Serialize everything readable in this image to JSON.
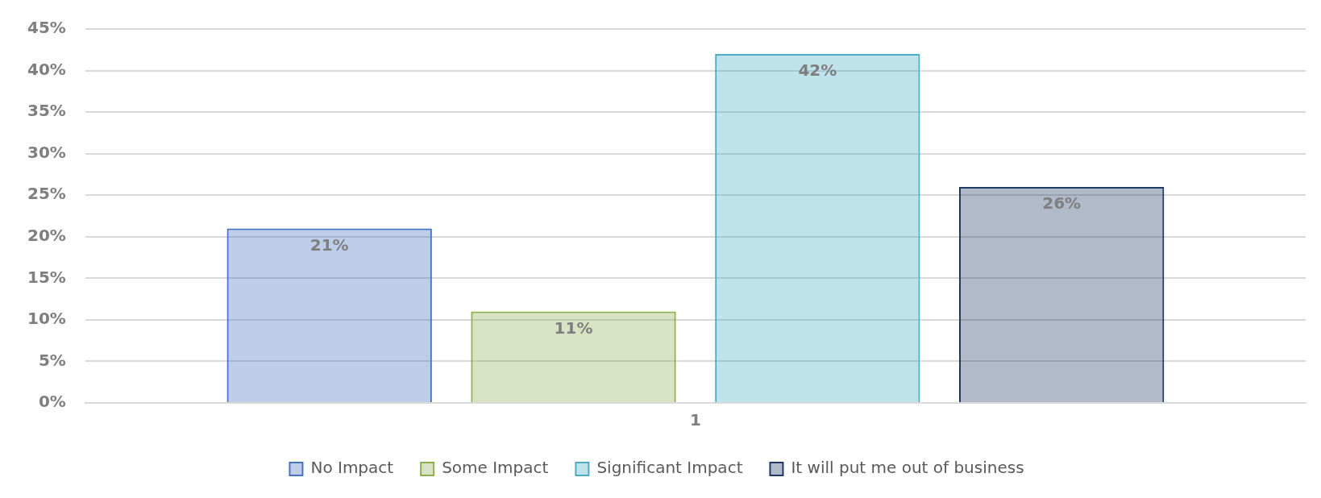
{
  "chart_data": {
    "type": "bar",
    "categories": [
      "1"
    ],
    "series": [
      {
        "name": "No Impact",
        "color": "#4472c4",
        "values": [
          21
        ],
        "value_labels": [
          "21%"
        ]
      },
      {
        "name": "Some Impact",
        "color": "#8db050",
        "values": [
          11
        ],
        "value_labels": [
          "11%"
        ]
      },
      {
        "name": "Significant Impact",
        "color": "#4bacc6",
        "values": [
          42
        ],
        "value_labels": [
          "42%"
        ]
      },
      {
        "name": "It will put me out of business",
        "color": "#1f3864",
        "values": [
          26
        ],
        "value_labels": [
          "26%"
        ]
      }
    ],
    "ylim": [
      0,
      45
    ],
    "yticks": [
      {
        "value": 0,
        "label": "0%"
      },
      {
        "value": 5,
        "label": "5%"
      },
      {
        "value": 10,
        "label": "10%"
      },
      {
        "value": 15,
        "label": "15%"
      },
      {
        "value": 20,
        "label": "20%"
      },
      {
        "value": 25,
        "label": "25%"
      },
      {
        "value": 30,
        "label": "30%"
      },
      {
        "value": 35,
        "label": "35%"
      },
      {
        "value": 40,
        "label": "40%"
      },
      {
        "value": 45,
        "label": "45%"
      }
    ],
    "grid": "y",
    "legend": "bottom"
  }
}
